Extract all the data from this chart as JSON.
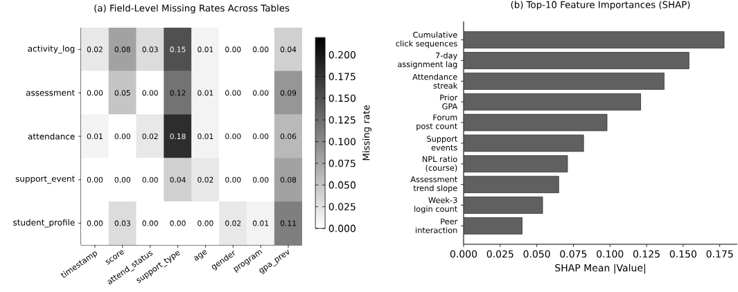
{
  "chart_data": [
    {
      "type": "heatmap",
      "title": "(a) Field-Level Missing Rates Across Tables",
      "categories": [
        "timestamp",
        "score",
        "attend_status",
        "support_type",
        "age",
        "gender",
        "program",
        "gpa_prev"
      ],
      "y_categories": [
        "activity_log",
        "assessment",
        "attendance",
        "support_event",
        "student_profile"
      ],
      "cells": [
        [
          0.02,
          0.08,
          0.03,
          0.15,
          0.01,
          0.0,
          0.0,
          0.04
        ],
        [
          0.0,
          0.05,
          0.0,
          0.12,
          0.01,
          0.0,
          0.0,
          0.09
        ],
        [
          0.01,
          0.0,
          0.02,
          0.18,
          0.01,
          0.0,
          0.0,
          0.06
        ],
        [
          0.0,
          0.0,
          0.0,
          0.04,
          0.02,
          0.0,
          0.0,
          0.08
        ],
        [
          0.0,
          0.03,
          0.0,
          0.0,
          0.0,
          0.02,
          0.01,
          0.11
        ]
      ],
      "clim": [
        0,
        0.22
      ],
      "cticks": [
        {
          "value": 0,
          "label": "0.000"
        },
        0.025,
        {
          "value": 0.05,
          "label": "0.050"
        },
        0.075,
        {
          "value": 0.1,
          "label": "0.100"
        },
        0.125,
        {
          "value": 0.15,
          "label": "0.150"
        },
        0.175,
        {
          "value": 0.2,
          "label": "0.200"
        }
      ],
      "clabel": "Missing rate",
      "cell_labels": [
        [
          "0.02",
          "0.08",
          "0.03",
          "0.15",
          "0.01",
          "0.00",
          "0.00",
          "0.04"
        ],
        [
          "0.00",
          "0.05",
          "0.00",
          "0.12",
          "0.01",
          "0.00",
          "0.00",
          "0.09"
        ],
        [
          "0.01",
          "0.00",
          "0.02",
          "0.18",
          "0.01",
          "0.00",
          "0.00",
          "0.06"
        ],
        [
          "0.00",
          "0.00",
          "0.00",
          "0.04",
          "0.02",
          "0.00",
          "0.00",
          "0.08"
        ],
        [
          "0.00",
          "0.03",
          "0.00",
          "0.00",
          "0.00",
          "0.02",
          "0.01",
          "0.11"
        ]
      ]
    },
    {
      "type": "bar",
      "orientation": "horizontal",
      "title": "(b) Top-10 Feature Importances (SHAP)",
      "xlabel": "SHAP Mean |Value|",
      "categories": [
        "Cumulative\nclick sequences",
        "7-day\nassignment lag",
        "Attendance\nstreak",
        "Prior\nGPA",
        "Forum\npost count",
        "Support\nevents",
        "NPL ratio\n(course)",
        "Assessment\ntrend slope",
        "Week-3\nlogin count",
        "Peer\ninteraction"
      ],
      "values": [
        0.178,
        0.154,
        0.137,
        0.121,
        0.098,
        0.082,
        0.071,
        0.065,
        0.054,
        0.04
      ],
      "color": "#606060",
      "xlim": [
        0,
        0.187
      ],
      "xticks": [
        {
          "value": 0,
          "label": "0.000"
        },
        0.025,
        {
          "value": 0.05,
          "label": "0.050"
        },
        0.075,
        {
          "value": 0.1,
          "label": "0.100"
        },
        0.125,
        {
          "value": 0.15,
          "label": "0.150"
        },
        0.175
      ]
    }
  ]
}
